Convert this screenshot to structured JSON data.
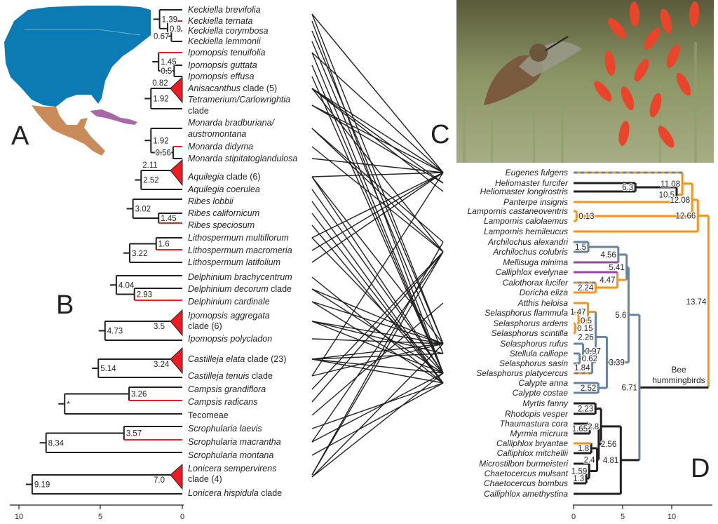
{
  "panels": {
    "a": "A",
    "b": "B",
    "c": "C",
    "d": "D"
  },
  "colors": {
    "red": "#ed1c24",
    "orange": "#f7931e",
    "blue": "#6783a3",
    "purple": "#93499a",
    "black": "#231f20",
    "map_north": "#0c7bb3",
    "map_mexico": "#c98b5a",
    "map_caribbean": "#a868a6"
  },
  "plants": {
    "labels": [
      {
        "i": "Keckiella brevifolia",
        "r": ""
      },
      {
        "i": "Keckiella ternata",
        "r": ""
      },
      {
        "i": "Keckiella corymbosa",
        "r": ""
      },
      {
        "i": "Keckiella lemmonii",
        "r": ""
      },
      {
        "i": "Ipomopsis tenuifolia",
        "r": ""
      },
      {
        "i": "Ipomopsis guttata",
        "r": ""
      },
      {
        "i": "Ipomopsis effusa",
        "r": ""
      },
      {
        "i": "Anisacanthus",
        "r": " clade (5)"
      },
      {
        "i": "Tetramerium/Carlowrightia",
        "r": ""
      },
      {
        "i": "",
        "r": "clade"
      },
      {
        "i": "Monarda bradburiana/",
        "r": ""
      },
      {
        "i": "austromontana",
        "r": ""
      },
      {
        "i": "Monarda didyma",
        "r": ""
      },
      {
        "i": "Monarda stipitatoglandulosa",
        "r": ""
      },
      {
        "i": "Aquilegia",
        "r": " clade (6)"
      },
      {
        "i": "Aquilegia coerulea",
        "r": ""
      },
      {
        "i": "Ribes lobbii",
        "r": ""
      },
      {
        "i": "Ribes californicum",
        "r": ""
      },
      {
        "i": "Ribes speciosum",
        "r": ""
      },
      {
        "i": "Lithospermum multiflorum",
        "r": ""
      },
      {
        "i": "Lithospermum macromeria",
        "r": ""
      },
      {
        "i": "Lithospermum latifolium",
        "r": ""
      },
      {
        "i": "Delphinium brachycentrum",
        "r": ""
      },
      {
        "i": "Delphinium decorum",
        "r": " clade"
      },
      {
        "i": "Delphinium cardinale",
        "r": ""
      },
      {
        "i": "Ipomopsis aggregata",
        "r": ""
      },
      {
        "i": "",
        "r": "clade (6)"
      },
      {
        "i": "Ipomopsis polycladon",
        "r": ""
      },
      {
        "i": "Castilleja elata",
        "r": " clade (23)"
      },
      {
        "i": "Castilleja tenuis",
        "r": " clade"
      },
      {
        "i": "Campsis grandiflora",
        "r": ""
      },
      {
        "i": "Campsis radicans",
        "r": ""
      },
      {
        "i": "",
        "r": "Tecomeae"
      },
      {
        "i": "Scrophularia laevis",
        "r": ""
      },
      {
        "i": "Scrophularia macrantha",
        "r": ""
      },
      {
        "i": "Scrophularia montana",
        "r": ""
      },
      {
        "i": "Lonicera sempervirens",
        "r": ""
      },
      {
        "i": "",
        "r": "clade (4)"
      },
      {
        "i": "Lonicera hispidula",
        "r": " clade"
      }
    ],
    "node_labels": [
      "1.39",
      "0.9",
      "0.67",
      "1.45",
      "0.5",
      "0.82",
      "1.92",
      "1.92",
      "0.56",
      "2.11",
      "2.52",
      "3.02",
      "1.45",
      "1.6",
      "3.22",
      "4.04",
      "2.93",
      "4.73",
      "3.5",
      "5.14",
      "3.24",
      "*",
      "3.26",
      "8.34",
      "3.57",
      "9.19",
      "7.0"
    ],
    "axis_ticks": [
      "10",
      "5",
      "0"
    ]
  },
  "birds": {
    "labels": [
      "Eugenes fulgens",
      "Heliomaster furcifer",
      "Heliomaster longirostris",
      "Panterpe insignis",
      "Lampornis castaneoventris",
      "Lampornis calolaemus",
      "Lampornis hemileucus",
      "Archilochus alexandri",
      "Archilochus colubris",
      "Mellisuga minima",
      "Calliphlox evelynae",
      "Calothorax lucifer",
      "Doricha eliza",
      "Atthis heloisa",
      "Selasphorus flammula",
      "Selasphorus ardens",
      "Selasphorus scintilla",
      "Selasphorus rufus",
      "Stellula calliope",
      "Selasphorus sasin",
      "Selasphorus platycercus",
      "Calypte anna",
      "Calypte costae",
      "Myrtis fanny",
      "Rhodopis vesper",
      "Thaumastura cora",
      "Myrmia micrura",
      "Calliphlox bryantae",
      "Calliphlox mitchellii",
      "Microstilbon burmeisteri",
      "Chaetocercus mulsant",
      "Chaetocercus bombus",
      "Calliphlox amethystina"
    ],
    "node_labels": [
      "6.3",
      "10.5",
      "11.08",
      "0.13",
      "12.08",
      "12.66",
      "13.74",
      "1.5",
      "4.56",
      "2.24",
      "4.47",
      "5.41",
      "1.47",
      "0.5",
      "0.15",
      "2.26",
      "0.97",
      "0.62",
      "1.84",
      "3.39",
      "2.52",
      "5.6",
      "6.71",
      "2.23",
      "2.8",
      "1.65",
      "2.56",
      "1.8",
      "2.4",
      "1.59",
      "1.3",
      "4.81"
    ],
    "clade_label": [
      "Bee",
      "hummingbirds"
    ],
    "axis_ticks": [
      "0",
      "5",
      "10"
    ]
  },
  "associations": [
    [
      0,
      0
    ],
    [
      0,
      17
    ],
    [
      1,
      20
    ],
    [
      2,
      17
    ],
    [
      3,
      18
    ],
    [
      4,
      0
    ],
    [
      4,
      20
    ],
    [
      5,
      20
    ],
    [
      6,
      20
    ],
    [
      7,
      0
    ],
    [
      7,
      1
    ],
    [
      7,
      8
    ],
    [
      7,
      2
    ],
    [
      8,
      0
    ],
    [
      8,
      1
    ],
    [
      9,
      7
    ],
    [
      9,
      8
    ],
    [
      10,
      8
    ],
    [
      11,
      0
    ],
    [
      12,
      0
    ],
    [
      12,
      17
    ],
    [
      12,
      20
    ],
    [
      13,
      20
    ],
    [
      14,
      21
    ],
    [
      15,
      21
    ],
    [
      16,
      21
    ],
    [
      17,
      0
    ],
    [
      17,
      20
    ],
    [
      18,
      0
    ],
    [
      19,
      0
    ],
    [
      20,
      21
    ],
    [
      21,
      17
    ],
    [
      21,
      20
    ],
    [
      22,
      21
    ],
    [
      22,
      17
    ],
    [
      23,
      17
    ],
    [
      23,
      20
    ],
    [
      23,
      18
    ],
    [
      24,
      17
    ],
    [
      25,
      17
    ],
    [
      25,
      20
    ],
    [
      25,
      18
    ],
    [
      25,
      21
    ],
    [
      26,
      17
    ],
    [
      26,
      0
    ],
    [
      27,
      8
    ],
    [
      28,
      8
    ],
    [
      29,
      13
    ],
    [
      30,
      21
    ],
    [
      31,
      8
    ],
    [
      31,
      20
    ],
    [
      32,
      21
    ],
    [
      33,
      8
    ],
    [
      33,
      7
    ],
    [
      34,
      17
    ],
    [
      34,
      20
    ]
  ]
}
